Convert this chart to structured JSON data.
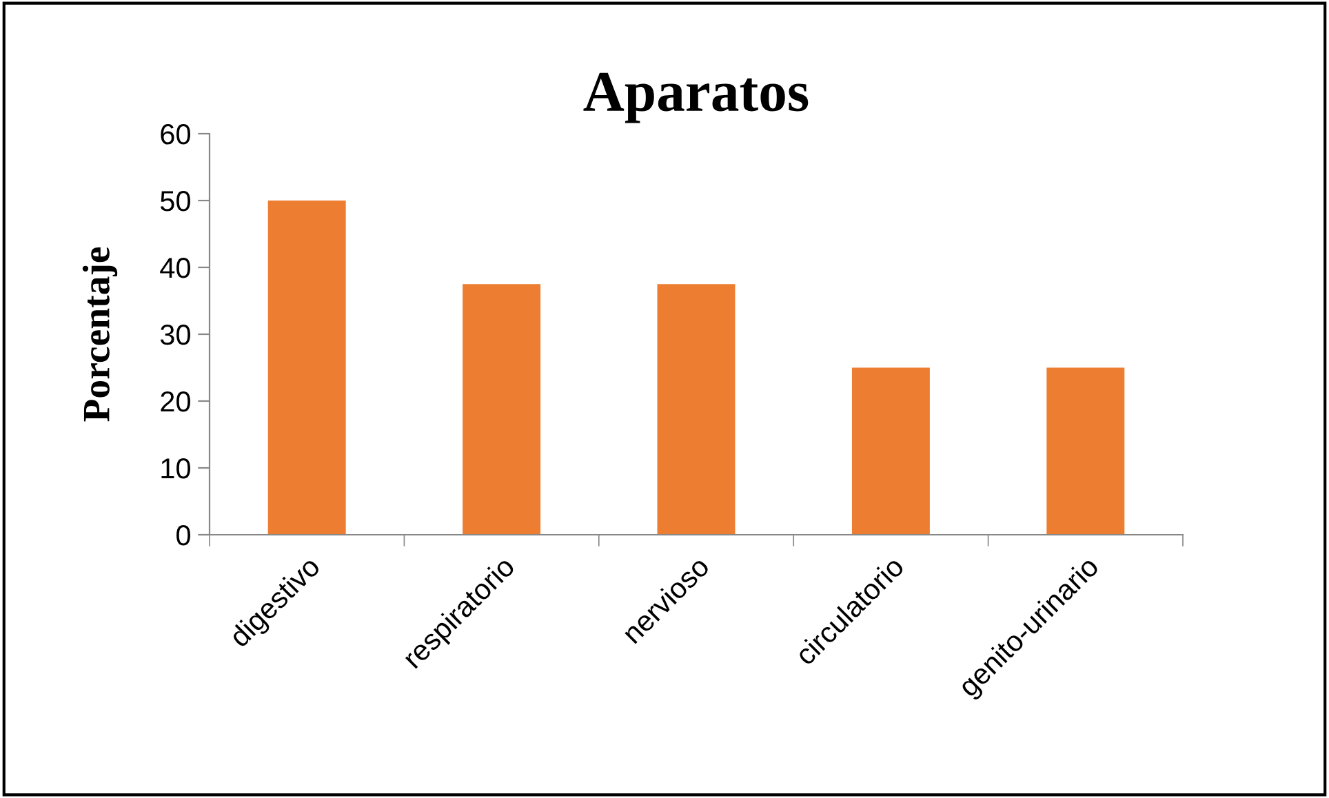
{
  "chart_data": {
    "type": "bar",
    "title": "Aparatos",
    "ylabel": "Porcentaje",
    "categories": [
      "digestivo",
      "respiratorio",
      "nervioso",
      "circulatorio",
      "genito-urinario"
    ],
    "values": [
      50,
      37.5,
      37.5,
      25,
      25
    ],
    "color": "#ed7d31",
    "ylim": [
      0,
      60
    ],
    "yticks": [
      0,
      10,
      20,
      30,
      40,
      50,
      60
    ],
    "grid": false
  }
}
